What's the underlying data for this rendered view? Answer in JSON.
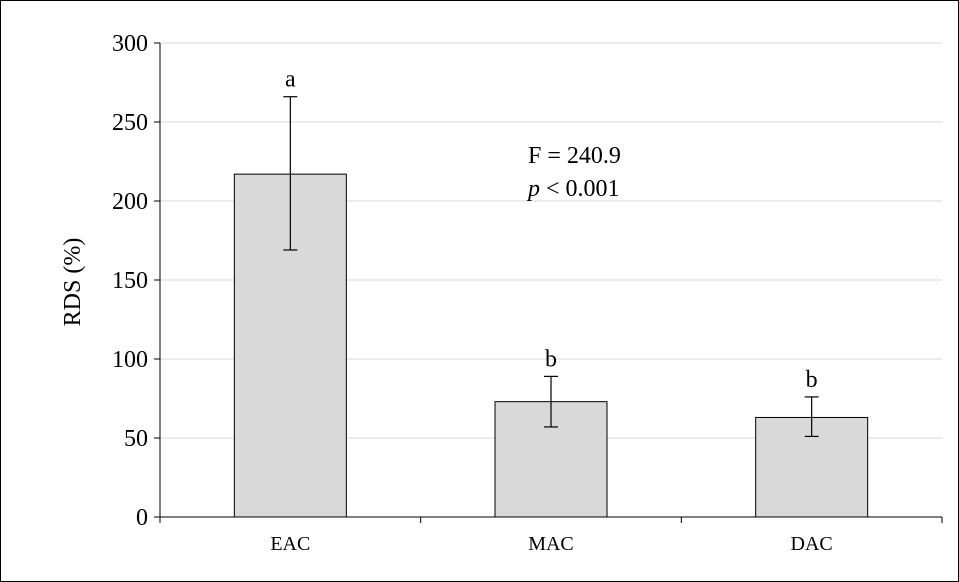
{
  "chart_data": {
    "type": "bar",
    "categories": [
      "EAC",
      "MAC",
      "DAC"
    ],
    "values": [
      217,
      73,
      63
    ],
    "error_upper": [
      266,
      89,
      76
    ],
    "error_lower": [
      169,
      57,
      51
    ],
    "letters": [
      "a",
      "b",
      "b"
    ],
    "ylabel": "RDS (%)",
    "xlabel": "",
    "ylim": [
      0,
      300
    ],
    "yticks": [
      0,
      50,
      100,
      150,
      200,
      250,
      300
    ],
    "annotation": {
      "line1": "F = 240.9",
      "p_symbol": "p",
      "p_rest": " < 0.001"
    },
    "grid": true,
    "bar_color": "#d9d9d9",
    "grid_color": "#d9d9d9"
  }
}
